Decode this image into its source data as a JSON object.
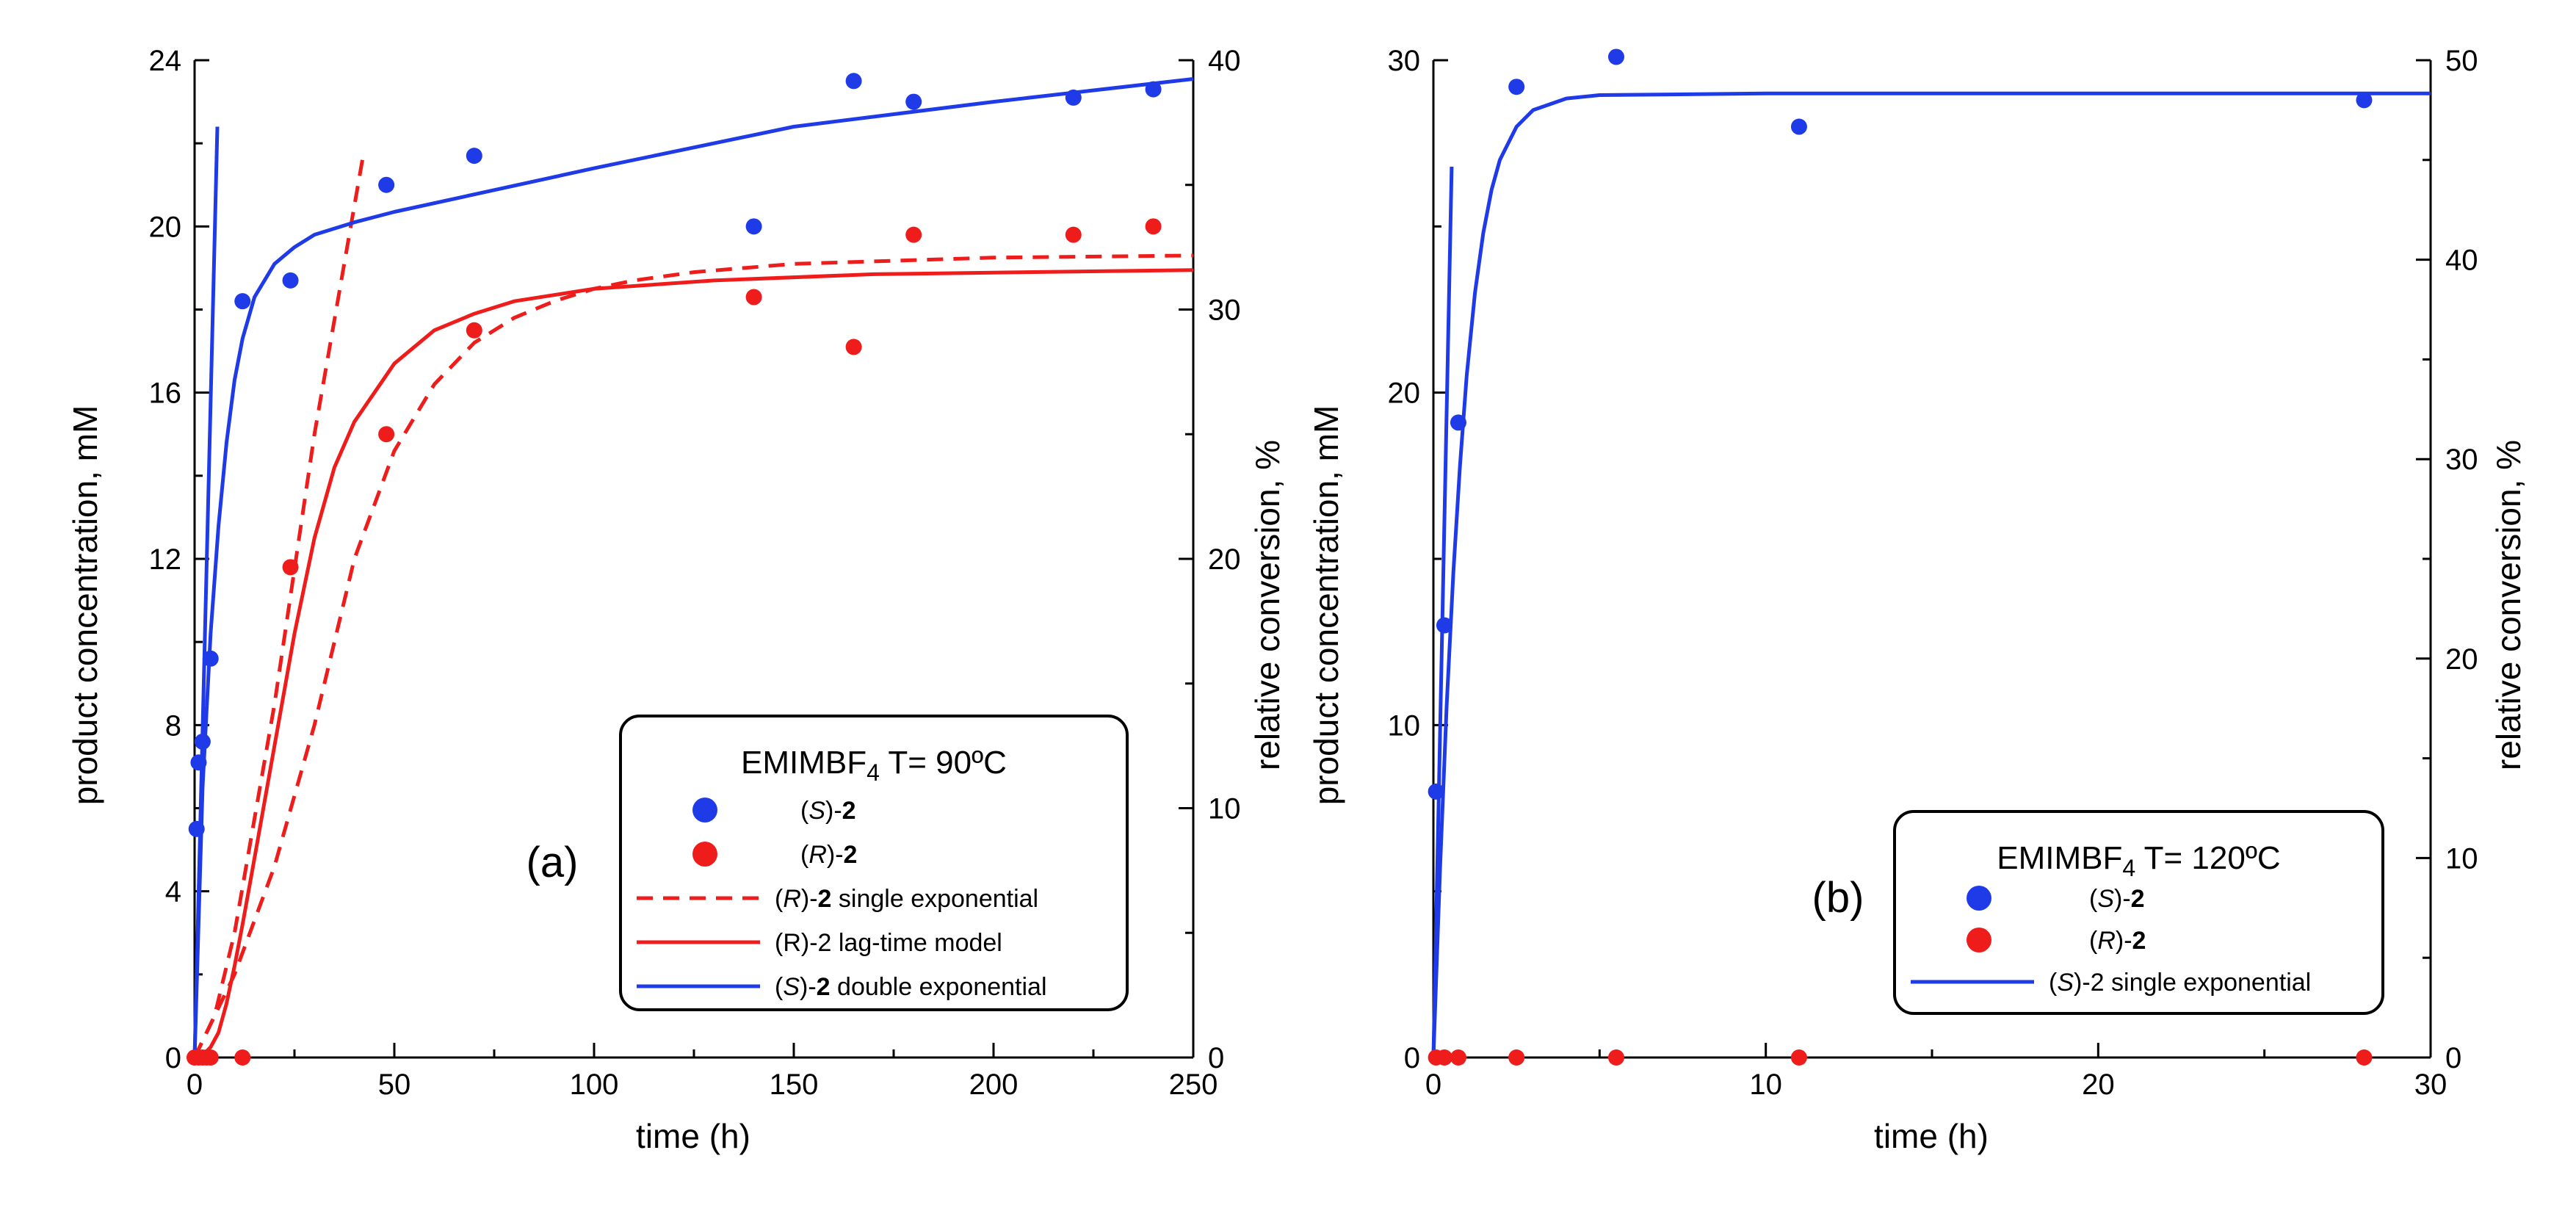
{
  "colors": {
    "blue": "#1f3be8",
    "red": "#ef1c1c",
    "axis": "#000000",
    "background": "#ffffff"
  },
  "chart_data": [
    {
      "id": "a",
      "type": "scatter",
      "panel_label": "(a)",
      "xlabel": "time (h)",
      "ylabel": "product concentration, mM",
      "y2label": "relative conversion, %",
      "xlim": [
        0,
        250
      ],
      "ylim": [
        0,
        24
      ],
      "y2lim": [
        0,
        40
      ],
      "xticks": [
        "0",
        "50",
        "100",
        "150",
        "200",
        "250"
      ],
      "yticks": [
        "0",
        "4",
        "8",
        "12",
        "16",
        "20",
        "24"
      ],
      "y2ticks": [
        "0",
        "10",
        "20",
        "30",
        "40"
      ],
      "legend_title": {
        "main": "EMIMBF",
        "sub": "4",
        "rest": " T= 90ºC"
      },
      "series": [
        {
          "name": "(S)-2",
          "kind": "points",
          "color": "blue",
          "label": {
            "pre": "(",
            "it": "S",
            "mid": ")-",
            "bold": "2",
            "post": ""
          },
          "points": [
            [
              0.5,
              5.5
            ],
            [
              1,
              7.1
            ],
            [
              2,
              7.6
            ],
            [
              4,
              9.6
            ],
            [
              12,
              18.2
            ],
            [
              24,
              18.7
            ],
            [
              48,
              21.0
            ],
            [
              70,
              21.7
            ],
            [
              140,
              20.0
            ],
            [
              165,
              23.5
            ],
            [
              180,
              23.0
            ],
            [
              220,
              23.1
            ],
            [
              240,
              23.3
            ]
          ]
        },
        {
          "name": "(R)-2",
          "kind": "points",
          "color": "red",
          "label": {
            "pre": "(",
            "it": "R",
            "mid": ")-",
            "bold": "2",
            "post": ""
          },
          "points": [
            [
              0,
              0
            ],
            [
              1,
              0
            ],
            [
              2,
              0
            ],
            [
              3,
              0
            ],
            [
              4,
              0
            ],
            [
              12,
              0
            ],
            [
              24,
              11.8
            ],
            [
              48,
              15.0
            ],
            [
              70,
              17.5
            ],
            [
              140,
              18.3
            ],
            [
              165,
              17.1
            ],
            [
              180,
              19.8
            ],
            [
              220,
              19.8
            ],
            [
              240,
              20.0
            ]
          ]
        },
        {
          "name": "(R)-2 single exponential",
          "kind": "dashed",
          "color": "red",
          "label": {
            "pre": "(",
            "it": "R",
            "mid": ")-",
            "bold": "2",
            "post": " single exponential"
          },
          "points": [
            [
              0,
              0
            ],
            [
              10,
              2.0
            ],
            [
              20,
              4.6
            ],
            [
              30,
              8.0
            ],
            [
              40,
              12.0
            ],
            [
              50,
              14.6
            ],
            [
              60,
              16.2
            ],
            [
              70,
              17.2
            ],
            [
              80,
              17.8
            ],
            [
              90,
              18.2
            ],
            [
              100,
              18.5
            ],
            [
              110,
              18.7
            ],
            [
              125,
              18.9
            ],
            [
              150,
              19.1
            ],
            [
              200,
              19.25
            ],
            [
              250,
              19.3
            ]
          ]
        },
        {
          "name": "(R)-2 single exponential (initial slope)",
          "kind": "dashed",
          "color": "red",
          "legend": false,
          "points": [
            [
              0,
              0
            ],
            [
              5,
              1.0
            ],
            [
              10,
              3.0
            ],
            [
              20,
              8.5
            ],
            [
              30,
              15.0
            ],
            [
              42,
              21.6
            ]
          ]
        },
        {
          "name": "(R)-2 lag-time model",
          "kind": "solid",
          "color": "red",
          "label": {
            "pre": "(R)-2 lag-time model",
            "it": "",
            "mid": "",
            "bold": "",
            "post": ""
          },
          "points": [
            [
              0,
              0
            ],
            [
              2,
              0.05
            ],
            [
              4,
              0.25
            ],
            [
              6,
              0.6
            ],
            [
              8,
              1.3
            ],
            [
              10,
              2.2
            ],
            [
              12,
              3.2
            ],
            [
              15,
              4.8
            ],
            [
              20,
              7.5
            ],
            [
              25,
              10.2
            ],
            [
              30,
              12.5
            ],
            [
              35,
              14.2
            ],
            [
              40,
              15.3
            ],
            [
              50,
              16.7
            ],
            [
              60,
              17.5
            ],
            [
              70,
              17.9
            ],
            [
              80,
              18.2
            ],
            [
              100,
              18.5
            ],
            [
              130,
              18.7
            ],
            [
              170,
              18.85
            ],
            [
              250,
              18.95
            ]
          ]
        },
        {
          "name": "(S)-2 double exponential",
          "kind": "solid",
          "color": "blue",
          "label": {
            "pre": "(",
            "it": "S",
            "mid": ")-",
            "bold": "2",
            "post": " double exponential"
          },
          "points": [
            [
              0,
              0
            ],
            [
              2,
              6.5
            ],
            [
              4,
              10.2
            ],
            [
              6,
              12.8
            ],
            [
              8,
              14.8
            ],
            [
              10,
              16.3
            ],
            [
              12,
              17.3
            ],
            [
              15,
              18.3
            ],
            [
              20,
              19.1
            ],
            [
              25,
              19.5
            ],
            [
              30,
              19.8
            ],
            [
              40,
              20.1
            ],
            [
              50,
              20.35
            ],
            [
              100,
              21.4
            ],
            [
              150,
              22.4
            ],
            [
              200,
              23.0
            ],
            [
              250,
              23.55
            ]
          ]
        },
        {
          "name": "(S)-2 initial slope",
          "kind": "solid",
          "color": "blue",
          "legend": false,
          "points": [
            [
              0,
              0
            ],
            [
              5.7,
              22.4
            ]
          ]
        }
      ]
    },
    {
      "id": "b",
      "type": "scatter",
      "panel_label": "(b)",
      "xlabel": "time (h)",
      "ylabel": "product concentration, mM",
      "y2label": "relative conversion, %",
      "xlim": [
        0,
        30
      ],
      "ylim": [
        0,
        30
      ],
      "y2lim": [
        0,
        50
      ],
      "xticks": [
        "0",
        "10",
        "20",
        "30"
      ],
      "yticks": [
        "0",
        "10",
        "20",
        "30"
      ],
      "y2ticks": [
        "0",
        "10",
        "20",
        "30",
        "40",
        "50"
      ],
      "legend_title": {
        "main": "EMIMBF",
        "sub": "4",
        "rest": " T= 120ºC"
      },
      "series": [
        {
          "name": "(S)-2",
          "kind": "points",
          "color": "blue",
          "label": {
            "pre": "(",
            "it": "S",
            "mid": ")-",
            "bold": "2",
            "post": ""
          },
          "points": [
            [
              0.08,
              8.0
            ],
            [
              0.33,
              13.0
            ],
            [
              0.75,
              19.1
            ],
            [
              2.5,
              29.2
            ],
            [
              5.5,
              30.1
            ],
            [
              11,
              28.0
            ],
            [
              28,
              28.8
            ]
          ]
        },
        {
          "name": "(R)-2",
          "kind": "points",
          "color": "red",
          "label": {
            "pre": "(",
            "it": "R",
            "mid": ")-",
            "bold": "2",
            "post": ""
          },
          "points": [
            [
              0.08,
              0
            ],
            [
              0.33,
              0
            ],
            [
              0.75,
              0
            ],
            [
              2.5,
              0
            ],
            [
              5.5,
              0
            ],
            [
              11,
              0
            ],
            [
              28,
              0
            ]
          ]
        },
        {
          "name": "(S)-2 single exponential",
          "kind": "solid",
          "color": "blue",
          "label": {
            "pre": "(",
            "it": "S",
            "mid": ")-2 single exponential",
            "bold": "",
            "post": ""
          },
          "points": [
            [
              0,
              0
            ],
            [
              0.2,
              5.7
            ],
            [
              0.4,
              10.6
            ],
            [
              0.6,
              14.6
            ],
            [
              0.8,
              17.8
            ],
            [
              1.0,
              20.5
            ],
            [
              1.25,
              23.0
            ],
            [
              1.5,
              24.8
            ],
            [
              1.75,
              26.1
            ],
            [
              2.0,
              27.0
            ],
            [
              2.5,
              28.0
            ],
            [
              3.0,
              28.5
            ],
            [
              4.0,
              28.85
            ],
            [
              5.0,
              28.95
            ],
            [
              10,
              29.0
            ],
            [
              20,
              29.0
            ],
            [
              30,
              29.0
            ]
          ]
        },
        {
          "name": "(S)-2 initial slope",
          "kind": "solid",
          "color": "blue",
          "legend": false,
          "points": [
            [
              0,
              0
            ],
            [
              0.55,
              26.8
            ]
          ]
        }
      ]
    }
  ]
}
